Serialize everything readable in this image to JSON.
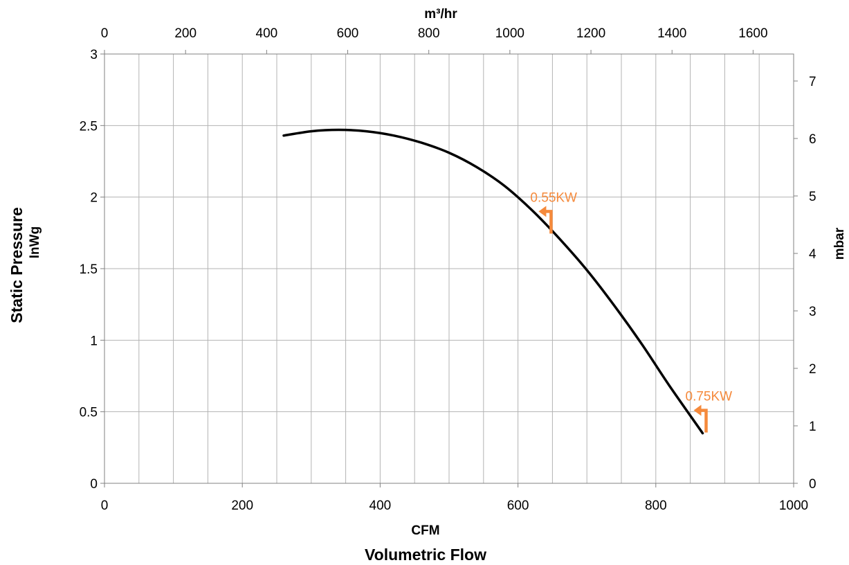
{
  "chart_data": {
    "type": "line",
    "title": "",
    "x_bottom": {
      "label": "CFM",
      "sublabel": "Volumetric Flow",
      "range": [
        0,
        1000
      ],
      "ticks": [
        0,
        200,
        400,
        600,
        800,
        1000
      ]
    },
    "x_top": {
      "label": "m³/hr",
      "range": [
        0,
        1700
      ],
      "ticks": [
        0,
        200,
        400,
        600,
        800,
        1000,
        1200,
        1400,
        1600
      ]
    },
    "y_left": {
      "label": "Static Pressure",
      "sublabel": "InWg",
      "range": [
        0,
        3
      ],
      "ticks": [
        "0",
        "0.5",
        "1",
        "1.5",
        "2",
        "2.5",
        "3"
      ]
    },
    "y_right": {
      "label": "mbar",
      "range": [
        0,
        7.47
      ],
      "ticks": [
        0,
        1,
        2,
        3,
        4,
        5,
        6,
        7
      ]
    },
    "grid": true,
    "series": [
      {
        "color": "#000000",
        "x": [
          260,
          300,
          340,
          380,
          420,
          460,
          500,
          540,
          580,
          620,
          660,
          700,
          740,
          780,
          820,
          868
        ],
        "y": [
          2.43,
          2.46,
          2.47,
          2.46,
          2.43,
          2.38,
          2.31,
          2.21,
          2.08,
          1.91,
          1.71,
          1.49,
          1.24,
          0.97,
          0.68,
          0.35
        ]
      }
    ],
    "annotations": [
      {
        "text": "0.55KW",
        "x": 648,
        "y": 1.9,
        "color": "#f58a3c"
      },
      {
        "text": "0.75KW",
        "x": 873,
        "y": 0.51,
        "color": "#f58a3c"
      }
    ]
  }
}
